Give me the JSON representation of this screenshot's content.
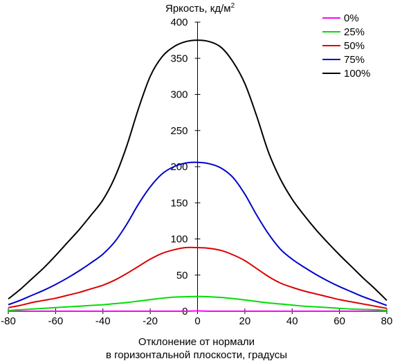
{
  "chart_data": {
    "type": "line",
    "title": "",
    "ylabel": "Яркость, кд/м",
    "ylabel_superscript": "2",
    "xlabel_line1": "Отклонение от нормали",
    "xlabel_line2": "в горизонтальной плоскости, градусы",
    "xlim": [
      -80,
      80
    ],
    "ylim": [
      0,
      400
    ],
    "xticks": [
      -80,
      -60,
      -40,
      -20,
      0,
      20,
      40,
      60,
      80
    ],
    "yticks": [
      0,
      50,
      100,
      150,
      200,
      250,
      300,
      350,
      400
    ],
    "grid": false,
    "legend_position": "top-right",
    "x": [
      -80,
      -75,
      -70,
      -65,
      -60,
      -55,
      -50,
      -45,
      -40,
      -35,
      -30,
      -25,
      -20,
      -15,
      -10,
      -5,
      0,
      5,
      10,
      15,
      20,
      25,
      30,
      35,
      40,
      45,
      50,
      55,
      60,
      65,
      70,
      75,
      80
    ],
    "series": [
      {
        "name": "0%",
        "color": "#ff00ff",
        "values": [
          0,
          0,
          0,
          0,
          0,
          0,
          0,
          0,
          0,
          0,
          0,
          0,
          0,
          0,
          0,
          0,
          0.5,
          0,
          0,
          0,
          0,
          0,
          0,
          0,
          0,
          0,
          0,
          0,
          0,
          0,
          0,
          0,
          0
        ]
      },
      {
        "name": "25%",
        "color": "#00dd00",
        "values": [
          1,
          2,
          3,
          4,
          5,
          6,
          7,
          8,
          9,
          10.5,
          12,
          14,
          16,
          18,
          19.5,
          20,
          20.5,
          20,
          19,
          17.5,
          15.5,
          13.5,
          11.5,
          10,
          8.5,
          7,
          6,
          5,
          4,
          3,
          2.5,
          2,
          1
        ]
      },
      {
        "name": "50%",
        "color": "#dd0000",
        "values": [
          5,
          8,
          12,
          15,
          18,
          22,
          26,
          31,
          36,
          43,
          52,
          62,
          72,
          80,
          85,
          88,
          88,
          87,
          84,
          78,
          70,
          59,
          48,
          39,
          33,
          28,
          24,
          20,
          16,
          13,
          10,
          7,
          4
        ]
      },
      {
        "name": "75%",
        "color": "#0000cc",
        "values": [
          9,
          15,
          22,
          29,
          37,
          46,
          56,
          67,
          79,
          96,
          120,
          148,
          172,
          190,
          200,
          205,
          206,
          204,
          198,
          185,
          162,
          133,
          107,
          86,
          72,
          61,
          51,
          42,
          34,
          27,
          20,
          14,
          8
        ]
      },
      {
        "name": "100%",
        "color": "#000000",
        "values": [
          17,
          30,
          45,
          60,
          77,
          95,
          113,
          133,
          154,
          185,
          228,
          280,
          325,
          352,
          366,
          373,
          375,
          373,
          365,
          345,
          315,
          270,
          220,
          183,
          155,
          133,
          113,
          95,
          78,
          62,
          46,
          31,
          15
        ]
      }
    ]
  }
}
